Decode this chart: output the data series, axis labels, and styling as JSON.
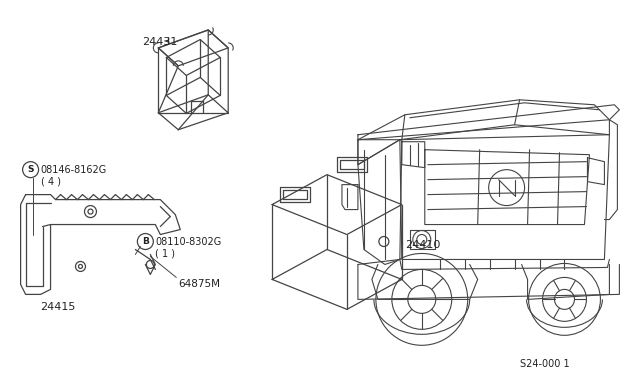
{
  "background_color": "#ffffff",
  "line_color": "#444444",
  "text_color": "#222222",
  "fig_width": 6.4,
  "fig_height": 3.72,
  "dpi": 100,
  "label_24431": "24431",
  "label_24410": "24410",
  "label_24415": "24415",
  "label_64875M": "64875M",
  "label_bolt_s": "S",
  "label_bolt_s_num": "08146-8162G",
  "label_bolt_s_qty": "( 4 )",
  "label_bolt_b": "B",
  "label_bolt_b_num": "08110-8302G",
  "label_bolt_b_qty": "( 1 )",
  "diagram_note": "S24-000 1"
}
